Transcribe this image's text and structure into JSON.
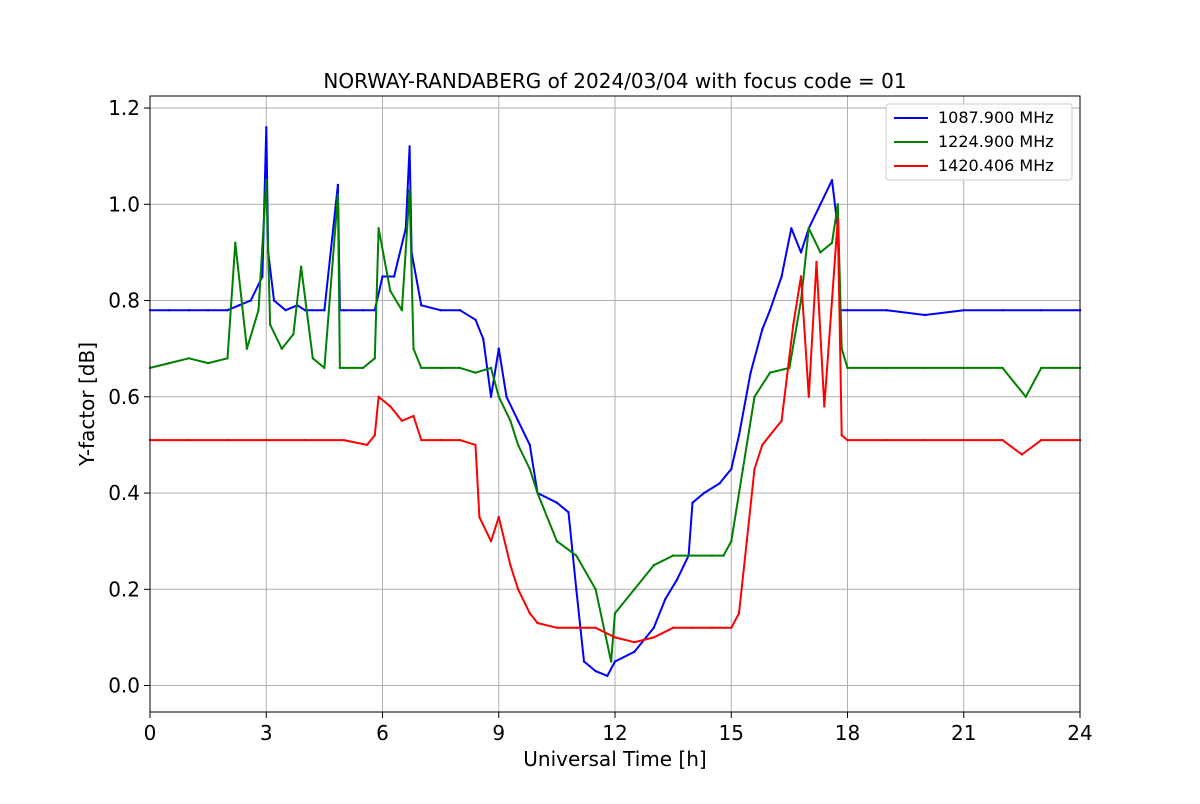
{
  "chart_data": {
    "type": "line",
    "title": "NORWAY-RANDABERG of 2024/03/04 with focus code = 01",
    "xlabel": "Universal Time [h]",
    "ylabel": "Y-factor [dB]",
    "xlim": [
      0,
      24
    ],
    "ylim": [
      -0.055,
      1.225
    ],
    "xticks": [
      0,
      3,
      6,
      9,
      12,
      15,
      18,
      21,
      24
    ],
    "xtick_labels": [
      "0",
      "3",
      "6",
      "9",
      "12",
      "15",
      "18",
      "21",
      "24"
    ],
    "yticks": [
      0.0,
      0.2,
      0.4,
      0.6,
      0.8,
      1.0,
      1.2
    ],
    "ytick_labels": [
      "0.0",
      "0.2",
      "0.4",
      "0.6",
      "0.8",
      "1.0",
      "1.2"
    ],
    "grid": true,
    "legend_position": "top-right",
    "series": [
      {
        "name": "1087.900 MHz",
        "color": "#0000ff",
        "x": [
          0.0,
          0.5,
          1.0,
          1.5,
          2.0,
          2.3,
          2.6,
          2.9,
          3.0,
          3.05,
          3.2,
          3.5,
          3.8,
          4.0,
          4.5,
          4.85,
          4.9,
          5.0,
          5.5,
          5.8,
          6.0,
          6.3,
          6.6,
          6.7,
          6.75,
          7.0,
          7.5,
          8.0,
          8.4,
          8.6,
          8.8,
          9.0,
          9.2,
          9.5,
          9.8,
          10.0,
          10.5,
          10.8,
          11.0,
          11.2,
          11.5,
          11.8,
          12.0,
          12.5,
          13.0,
          13.3,
          13.6,
          13.9,
          14.0,
          14.3,
          14.7,
          15.0,
          15.2,
          15.5,
          15.8,
          16.0,
          16.3,
          16.55,
          16.8,
          17.0,
          17.3,
          17.6,
          17.75,
          17.8,
          18.0,
          19.0,
          20.0,
          21.0,
          22.0,
          23.0,
          24.0
        ],
        "y": [
          0.78,
          0.78,
          0.78,
          0.78,
          0.78,
          0.79,
          0.8,
          0.85,
          1.16,
          0.9,
          0.8,
          0.78,
          0.79,
          0.78,
          0.78,
          1.04,
          0.78,
          0.78,
          0.78,
          0.78,
          0.85,
          0.85,
          0.95,
          1.12,
          0.9,
          0.79,
          0.78,
          0.78,
          0.76,
          0.72,
          0.6,
          0.7,
          0.6,
          0.55,
          0.5,
          0.4,
          0.38,
          0.36,
          0.2,
          0.05,
          0.03,
          0.02,
          0.05,
          0.07,
          0.12,
          0.18,
          0.22,
          0.27,
          0.38,
          0.4,
          0.42,
          0.45,
          0.52,
          0.65,
          0.74,
          0.78,
          0.85,
          0.95,
          0.9,
          0.95,
          1.0,
          1.05,
          0.95,
          0.78,
          0.78,
          0.78,
          0.77,
          0.78,
          0.78,
          0.78,
          0.78
        ]
      },
      {
        "name": "1224.900 MHz",
        "color": "#008000",
        "x": [
          0.0,
          0.5,
          1.0,
          1.5,
          2.0,
          2.2,
          2.5,
          2.8,
          3.0,
          3.1,
          3.4,
          3.7,
          3.9,
          4.2,
          4.5,
          4.85,
          4.9,
          5.0,
          5.5,
          5.8,
          5.9,
          6.2,
          6.5,
          6.7,
          6.8,
          7.0,
          7.5,
          8.0,
          8.4,
          8.8,
          9.0,
          9.3,
          9.5,
          9.8,
          10.0,
          10.5,
          11.0,
          11.5,
          11.9,
          12.0,
          12.5,
          13.0,
          13.5,
          14.0,
          14.5,
          14.8,
          15.0,
          15.3,
          15.6,
          16.0,
          16.5,
          16.8,
          17.0,
          17.3,
          17.6,
          17.75,
          17.85,
          18.0,
          19.0,
          20.0,
          21.0,
          22.0,
          22.6,
          23.0,
          24.0
        ],
        "y": [
          0.66,
          0.67,
          0.68,
          0.67,
          0.68,
          0.92,
          0.7,
          0.78,
          1.05,
          0.75,
          0.7,
          0.73,
          0.87,
          0.68,
          0.66,
          1.02,
          0.66,
          0.66,
          0.66,
          0.68,
          0.95,
          0.82,
          0.78,
          1.03,
          0.7,
          0.66,
          0.66,
          0.66,
          0.65,
          0.66,
          0.6,
          0.55,
          0.5,
          0.45,
          0.4,
          0.3,
          0.27,
          0.2,
          0.05,
          0.15,
          0.2,
          0.25,
          0.27,
          0.27,
          0.27,
          0.27,
          0.3,
          0.45,
          0.6,
          0.65,
          0.66,
          0.8,
          0.95,
          0.9,
          0.92,
          1.0,
          0.7,
          0.66,
          0.66,
          0.66,
          0.66,
          0.66,
          0.6,
          0.66,
          0.66
        ]
      },
      {
        "name": "1420.406 MHz",
        "color": "#ff0000",
        "x": [
          0.0,
          1.0,
          2.0,
          3.0,
          4.0,
          5.0,
          5.6,
          5.8,
          5.9,
          6.2,
          6.5,
          6.8,
          7.0,
          7.5,
          8.0,
          8.4,
          8.5,
          8.8,
          9.0,
          9.3,
          9.5,
          9.8,
          10.0,
          10.5,
          11.0,
          11.5,
          12.0,
          12.5,
          13.0,
          13.5,
          14.0,
          14.5,
          15.0,
          15.2,
          15.4,
          15.6,
          15.8,
          16.0,
          16.3,
          16.6,
          16.8,
          17.0,
          17.2,
          17.4,
          17.6,
          17.75,
          17.85,
          18.0,
          19.0,
          20.0,
          21.0,
          22.0,
          22.5,
          23.0,
          24.0
        ],
        "y": [
          0.51,
          0.51,
          0.51,
          0.51,
          0.51,
          0.51,
          0.5,
          0.52,
          0.6,
          0.58,
          0.55,
          0.56,
          0.51,
          0.51,
          0.51,
          0.5,
          0.35,
          0.3,
          0.35,
          0.25,
          0.2,
          0.15,
          0.13,
          0.12,
          0.12,
          0.12,
          0.1,
          0.09,
          0.1,
          0.12,
          0.12,
          0.12,
          0.12,
          0.15,
          0.3,
          0.45,
          0.5,
          0.52,
          0.55,
          0.75,
          0.85,
          0.6,
          0.88,
          0.58,
          0.8,
          0.97,
          0.52,
          0.51,
          0.51,
          0.51,
          0.51,
          0.51,
          0.48,
          0.51,
          0.51
        ]
      }
    ]
  }
}
